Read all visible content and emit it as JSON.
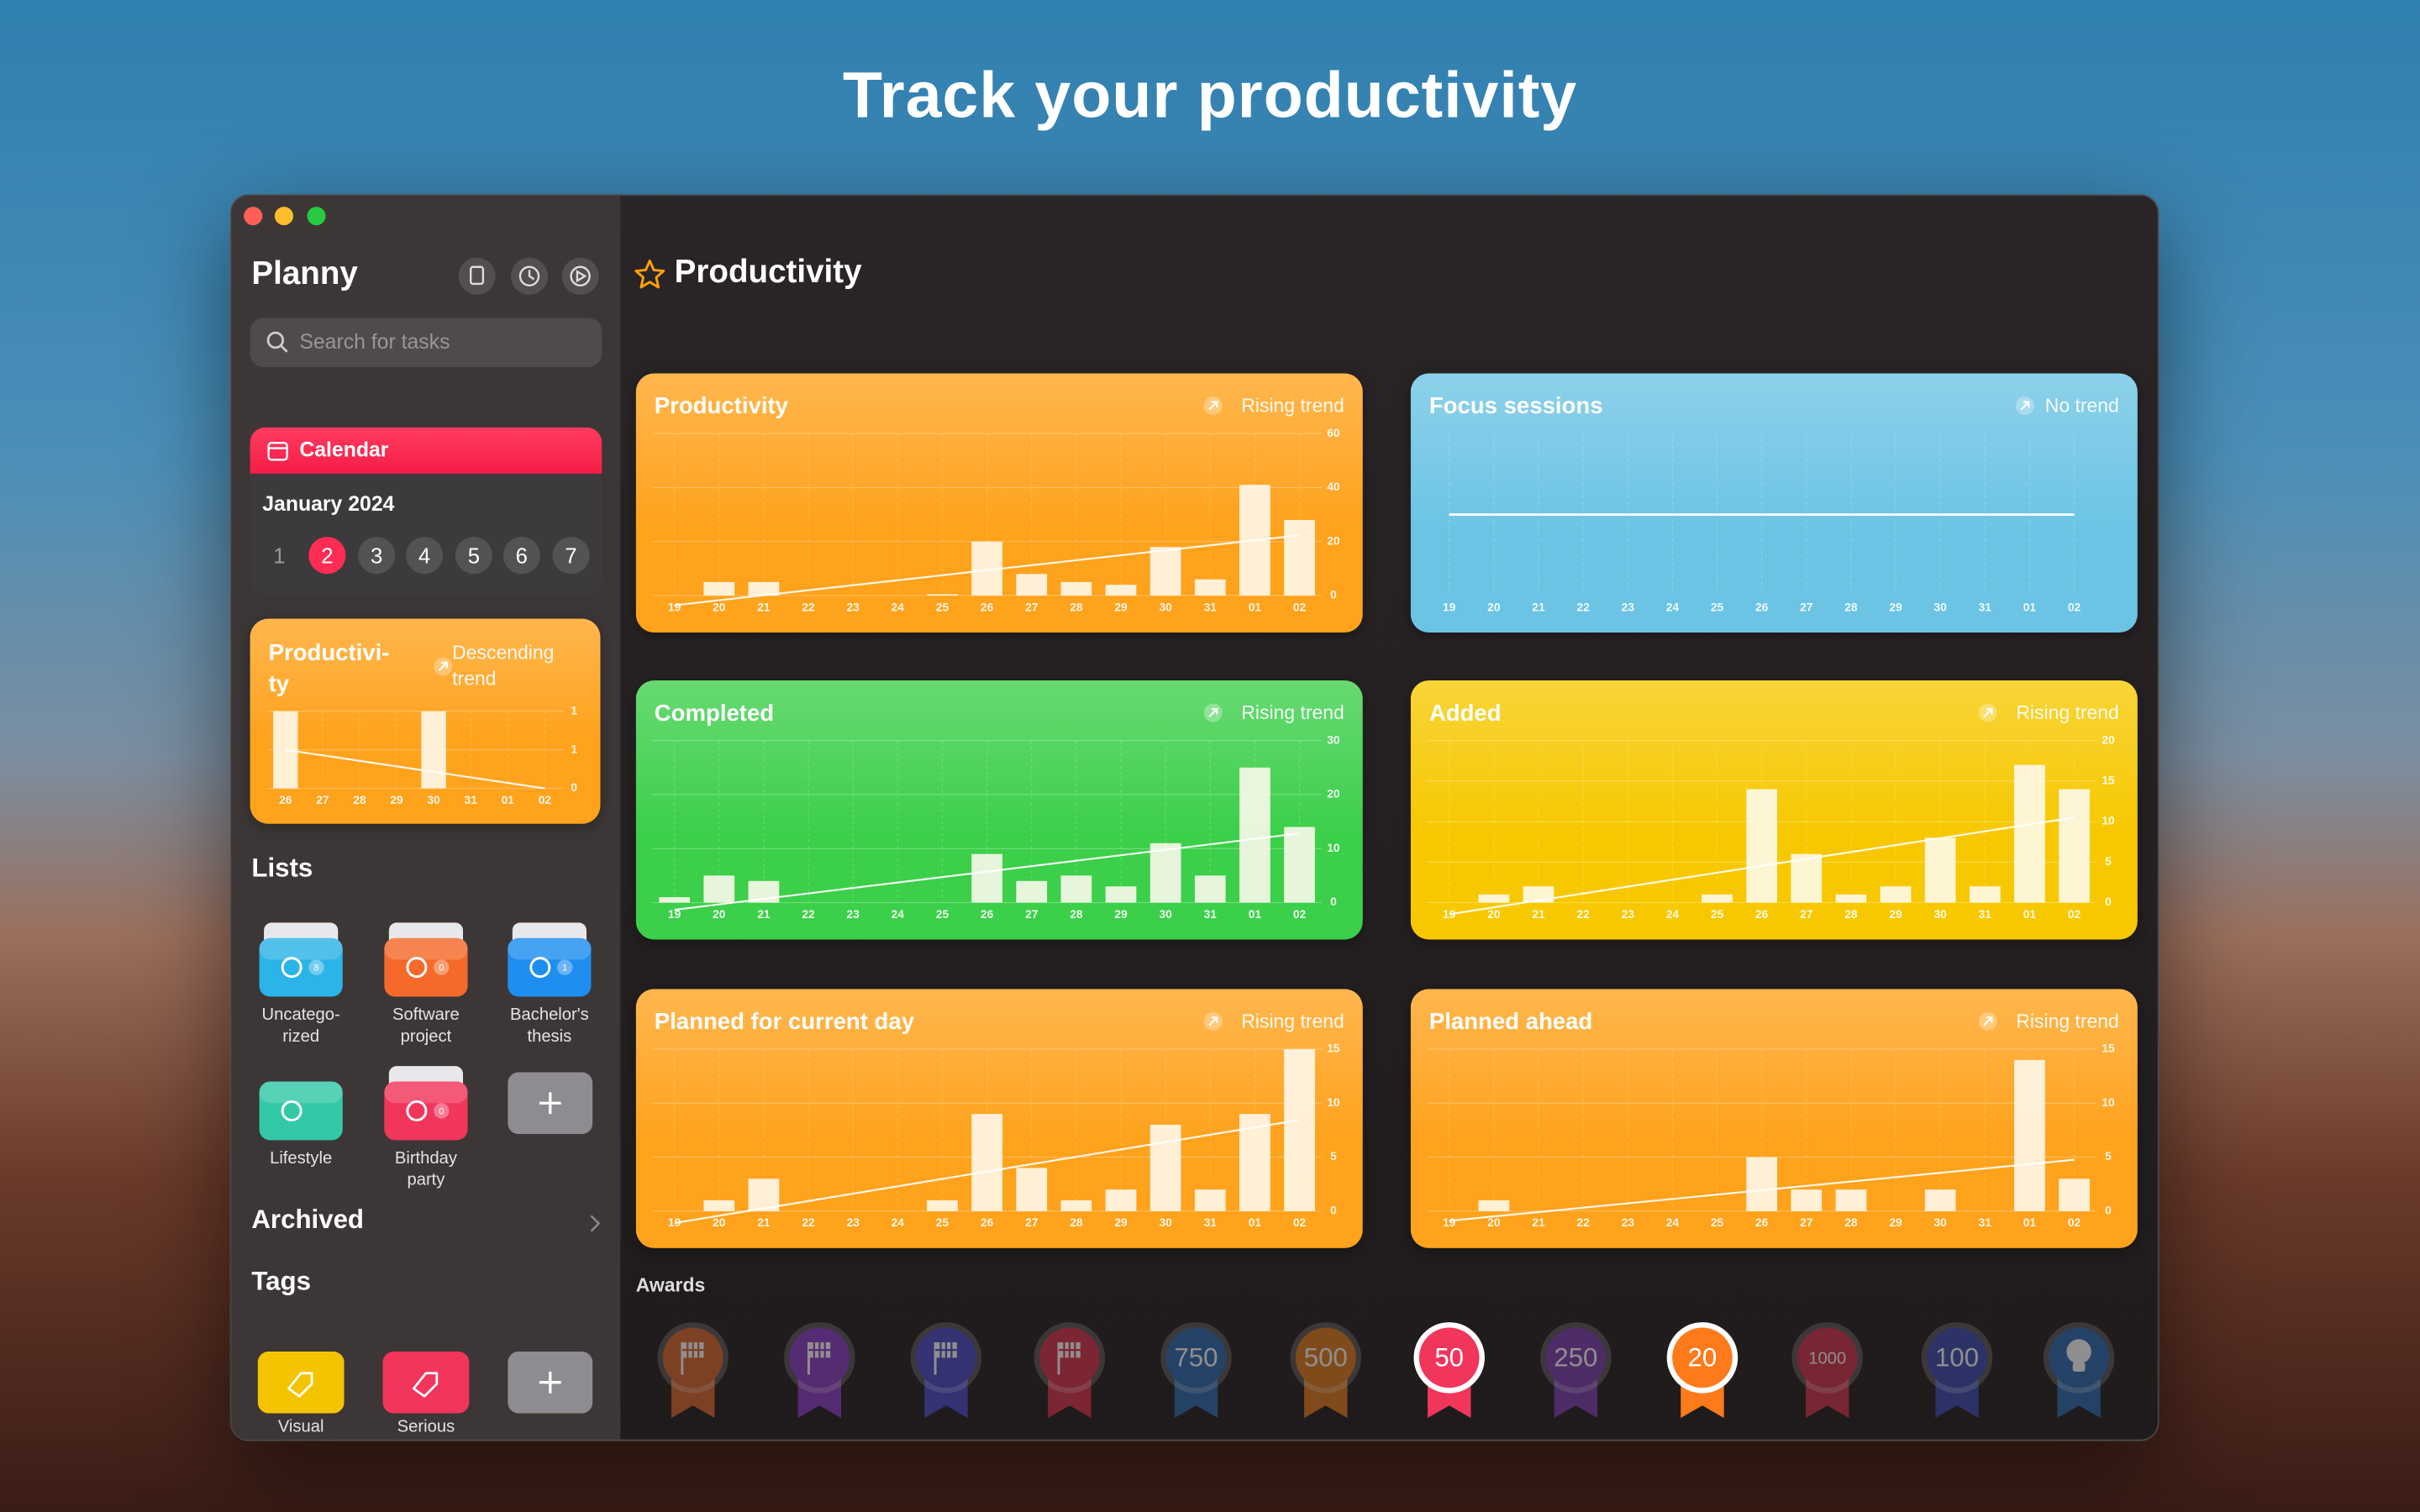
{
  "headline": "Track your productivity",
  "sidebar": {
    "app_name": "Planny",
    "search_placeholder": "Search for tasks",
    "calendar": {
      "title": "Calendar",
      "month": "January 2024",
      "days": [
        1,
        2,
        3,
        4,
        5,
        6,
        7
      ],
      "selected": 2
    },
    "lists_title": "Lists",
    "lists": [
      {
        "name": "Uncatego-rized",
        "count": 8,
        "color": "#2bb4e8"
      },
      {
        "name": "Software project",
        "count": 0,
        "color": "#f56a2a"
      },
      {
        "name": "Bachelor's thesis",
        "count": 1,
        "color": "#1e8ef0"
      },
      {
        "name": "Lifestyle",
        "color": "#33c9a6"
      },
      {
        "name": "Birthday party",
        "count": 0,
        "color": "#f2355b"
      }
    ],
    "archived": "Archived",
    "tags_title": "Tags",
    "tags": [
      {
        "name": "Visual",
        "color": "#f5c400"
      },
      {
        "name": "Serious",
        "color": "#f2355b"
      }
    ]
  },
  "main": {
    "title": "Productivity",
    "awards_title": "Awards",
    "awards": [
      {
        "icon": "flag",
        "color": "#d9662a"
      },
      {
        "icon": "flag",
        "color": "#8a3cc8"
      },
      {
        "icon": "flag",
        "color": "#4a4ac8"
      },
      {
        "icon": "flag",
        "color": "#d8304a"
      },
      {
        "label": 750,
        "color": "#2a6ab0"
      },
      {
        "label": 500,
        "color": "#e07a1a"
      },
      {
        "label": 50,
        "color": "#f2355b",
        "achieved": true
      },
      {
        "label": 250,
        "color": "#7a3cb0"
      },
      {
        "label": 20,
        "color": "#ff7a1a",
        "achieved": true
      },
      {
        "label": 1000,
        "color": "#d0304a"
      },
      {
        "label": 100,
        "color": "#3a4ab0"
      },
      {
        "icon": "bulb",
        "color": "#2a6ab0"
      }
    ]
  },
  "chart_data": [
    {
      "type": "bar",
      "title": "Productivity",
      "trend": "Rising trend",
      "color": "#ffa21c",
      "grid": true,
      "categories": [
        "19",
        "20",
        "21",
        "22",
        "23",
        "24",
        "25",
        "26",
        "27",
        "28",
        "29",
        "30",
        "31",
        "01",
        "02"
      ],
      "values": [
        0,
        5,
        5,
        0,
        0,
        0,
        0.5,
        20,
        8,
        5,
        4,
        18,
        6,
        41,
        28
      ],
      "ylim": [
        0,
        60
      ],
      "yticks": [
        0,
        20,
        40,
        60
      ]
    },
    {
      "type": "line",
      "title": "Focus sessions",
      "trend": "No trend",
      "color": "#6cc4e4",
      "grid": true,
      "categories": [
        "19",
        "20",
        "21",
        "22",
        "23",
        "24",
        "25",
        "26",
        "27",
        "28",
        "29",
        "30",
        "31",
        "01",
        "02"
      ],
      "values": [
        0,
        0,
        0,
        0,
        0,
        0,
        0,
        0,
        0,
        0,
        0,
        0,
        0,
        0,
        0
      ],
      "ylim": [
        -1,
        1
      ]
    },
    {
      "type": "bar",
      "title": "Completed",
      "trend": "Rising trend",
      "color": "#3ccf4a",
      "grid": true,
      "categories": [
        "19",
        "20",
        "21",
        "22",
        "23",
        "24",
        "25",
        "26",
        "27",
        "28",
        "29",
        "30",
        "31",
        "01",
        "02"
      ],
      "values": [
        1,
        5,
        4,
        0,
        0,
        0,
        0,
        9,
        4,
        5,
        3,
        11,
        5,
        25,
        14
      ],
      "ylim": [
        0,
        30
      ],
      "yticks": [
        0,
        10,
        20,
        30
      ]
    },
    {
      "type": "bar",
      "title": "Added",
      "trend": "Rising trend",
      "color": "#f7c800",
      "grid": true,
      "categories": [
        "19",
        "20",
        "21",
        "22",
        "23",
        "24",
        "25",
        "26",
        "27",
        "28",
        "29",
        "30",
        "31",
        "01",
        "02"
      ],
      "values": [
        0,
        1,
        2,
        0,
        0,
        0,
        1,
        14,
        6,
        1,
        2,
        8,
        2,
        17,
        14
      ],
      "ylim": [
        0,
        20
      ],
      "yticks": [
        0,
        5,
        10,
        15,
        20
      ]
    },
    {
      "type": "bar",
      "title": "Planned for current day",
      "trend": "Rising trend",
      "color": "#ffa21c",
      "grid": true,
      "categories": [
        "19",
        "20",
        "21",
        "22",
        "23",
        "24",
        "25",
        "26",
        "27",
        "28",
        "29",
        "30",
        "31",
        "01",
        "02"
      ],
      "values": [
        0,
        1,
        3,
        0,
        0,
        0,
        1,
        9,
        4,
        1,
        2,
        8,
        2,
        9,
        15
      ],
      "ylim": [
        0,
        15
      ],
      "yticks": [
        0,
        5,
        10,
        15
      ]
    },
    {
      "type": "bar",
      "title": "Planned ahead",
      "trend": "Rising trend",
      "color": "#ffa21c",
      "grid": true,
      "categories": [
        "19",
        "20",
        "21",
        "22",
        "23",
        "24",
        "25",
        "26",
        "27",
        "28",
        "29",
        "30",
        "31",
        "01",
        "02"
      ],
      "values": [
        0,
        1,
        0,
        0,
        0,
        0,
        0,
        5,
        2,
        2,
        0,
        2,
        0,
        14,
        3
      ],
      "ylim": [
        0,
        15
      ],
      "yticks": [
        0,
        5,
        10,
        15
      ]
    },
    {
      "type": "bar",
      "title": "Productivi-ty",
      "trend": "Descending trend",
      "color": "#ffa21c",
      "grid": true,
      "categories": [
        "26",
        "27",
        "28",
        "29",
        "30",
        "31",
        "01",
        "02"
      ],
      "values": [
        1,
        0,
        0,
        0,
        1,
        0,
        0,
        0
      ],
      "ylim": [
        0,
        1
      ],
      "yticks": [
        0,
        {
          "value": 0.5,
          "label": "1"
        },
        1
      ]
    }
  ]
}
